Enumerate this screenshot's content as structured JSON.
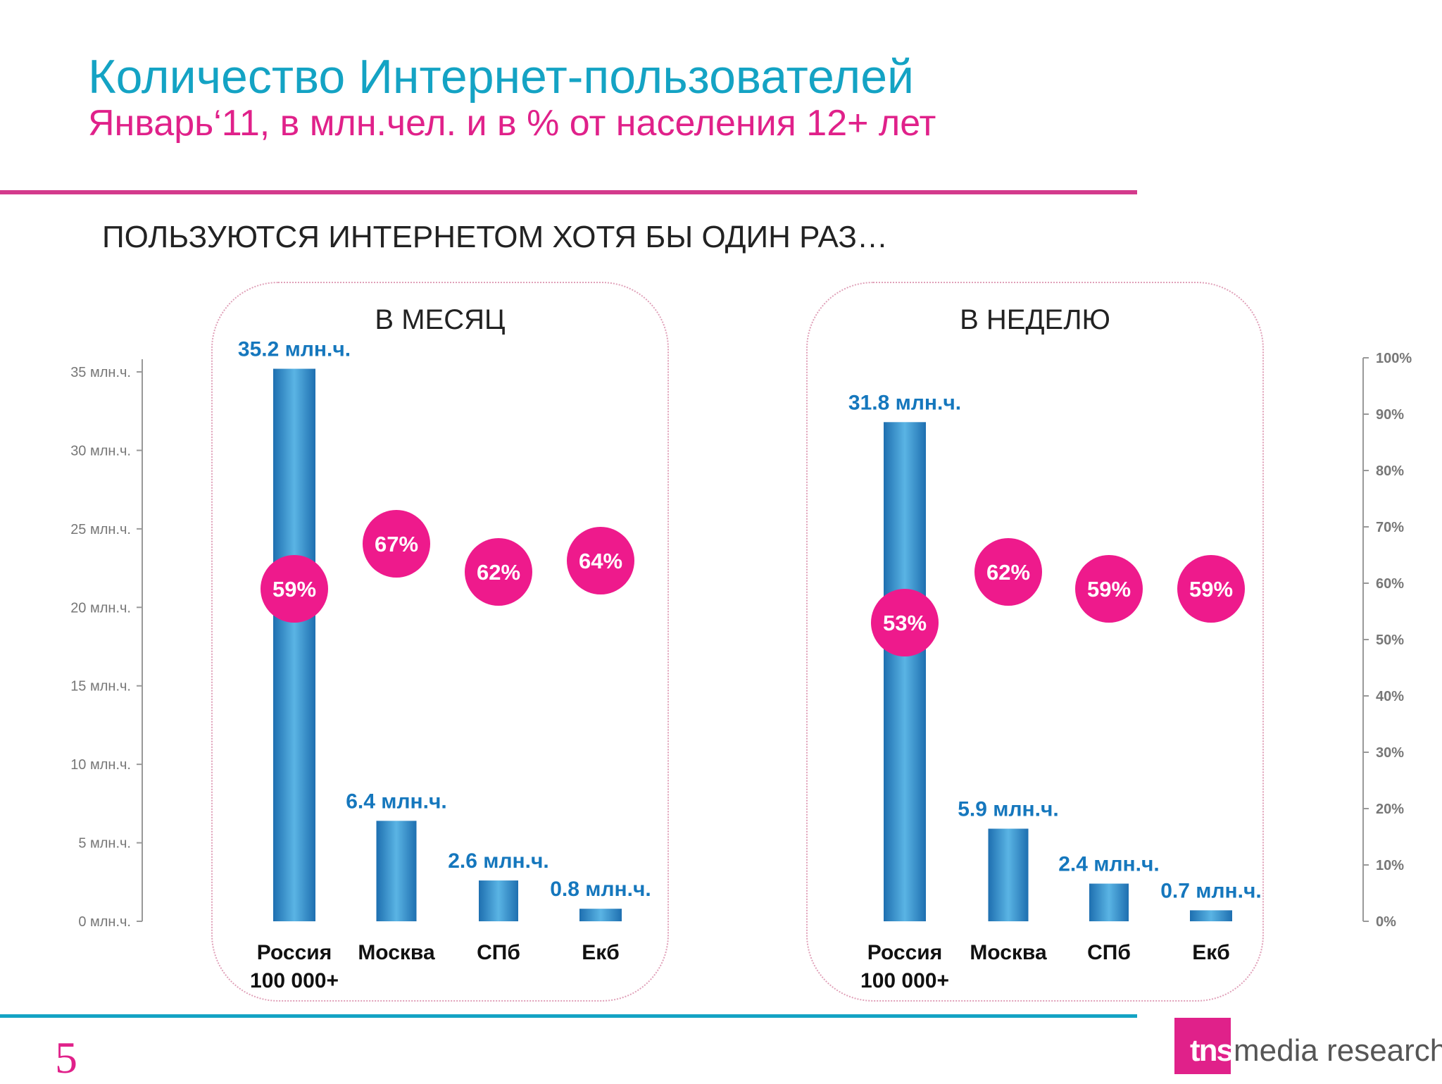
{
  "header": {
    "title": "Количество Интернет-пользователей",
    "subtitle": "Январь‘11, в млн.чел. и в % от населения 12+ лет"
  },
  "section_heading": "ПОЛЬЗУЮТСЯ ИНТЕРНЕТОМ ХОТЯ БЫ ОДИН РАЗ…",
  "footer": {
    "page_number": "5",
    "logo_mark": "tns",
    "logo_text": "media research"
  },
  "colors": {
    "title": "#14a3c4",
    "subtitle": "#e0218a",
    "bar": "#2f8dcc",
    "bubble": "#ee1a8c",
    "bar_label": "#1577bd"
  },
  "chart_data": [
    {
      "type": "bar",
      "panel_title": "В МЕСЯЦ",
      "categories": [
        "Россия 100 000+",
        "Москва",
        "СПб",
        "Екб"
      ],
      "category_lines": [
        [
          "Россия",
          "100 000+"
        ],
        [
          "Москва"
        ],
        [
          "СПб"
        ],
        [
          "Екб"
        ]
      ],
      "values": [
        35.2,
        6.4,
        2.6,
        0.8
      ],
      "value_labels": [
        "35.2 млн.ч.",
        "6.4 млн.ч.",
        "2.6 млн.ч.",
        "0.8 млн.ч."
      ],
      "percent": [
        59,
        67,
        62,
        64
      ],
      "percent_labels": [
        "59%",
        "67%",
        "62%",
        "64%"
      ]
    },
    {
      "type": "bar",
      "panel_title": "В НЕДЕЛЮ",
      "categories": [
        "Россия 100 000+",
        "Москва",
        "СПб",
        "Екб"
      ],
      "category_lines": [
        [
          "Россия",
          "100 000+"
        ],
        [
          "Москва"
        ],
        [
          "СПб"
        ],
        [
          "Екб"
        ]
      ],
      "values": [
        31.8,
        5.9,
        2.4,
        0.7
      ],
      "value_labels": [
        "31.8 млн.ч.",
        "5.9 млн.ч.",
        "2.4 млн.ч.",
        "0.7 млн.ч."
      ],
      "percent": [
        53,
        62,
        59,
        59
      ],
      "percent_labels": [
        "53%",
        "62%",
        "59%",
        "59%"
      ]
    }
  ],
  "left_axis": {
    "ylim": [
      0,
      35
    ],
    "ticks": [
      0,
      5,
      10,
      15,
      20,
      25,
      30,
      35
    ],
    "tick_labels": [
      "0 млн.ч.",
      "5 млн.ч.",
      "10 млн.ч.",
      "15 млн.ч.",
      "20 млн.ч.",
      "25 млн.ч.",
      "30 млн.ч.",
      "35 млн.ч."
    ]
  },
  "right_axis": {
    "ylim": [
      0,
      100
    ],
    "ticks": [
      0,
      10,
      20,
      30,
      40,
      50,
      60,
      70,
      80,
      90,
      100
    ],
    "tick_labels": [
      "0%",
      "10%",
      "20%",
      "30%",
      "40%",
      "50%",
      "60%",
      "70%",
      "80%",
      "90%",
      "100%"
    ]
  }
}
